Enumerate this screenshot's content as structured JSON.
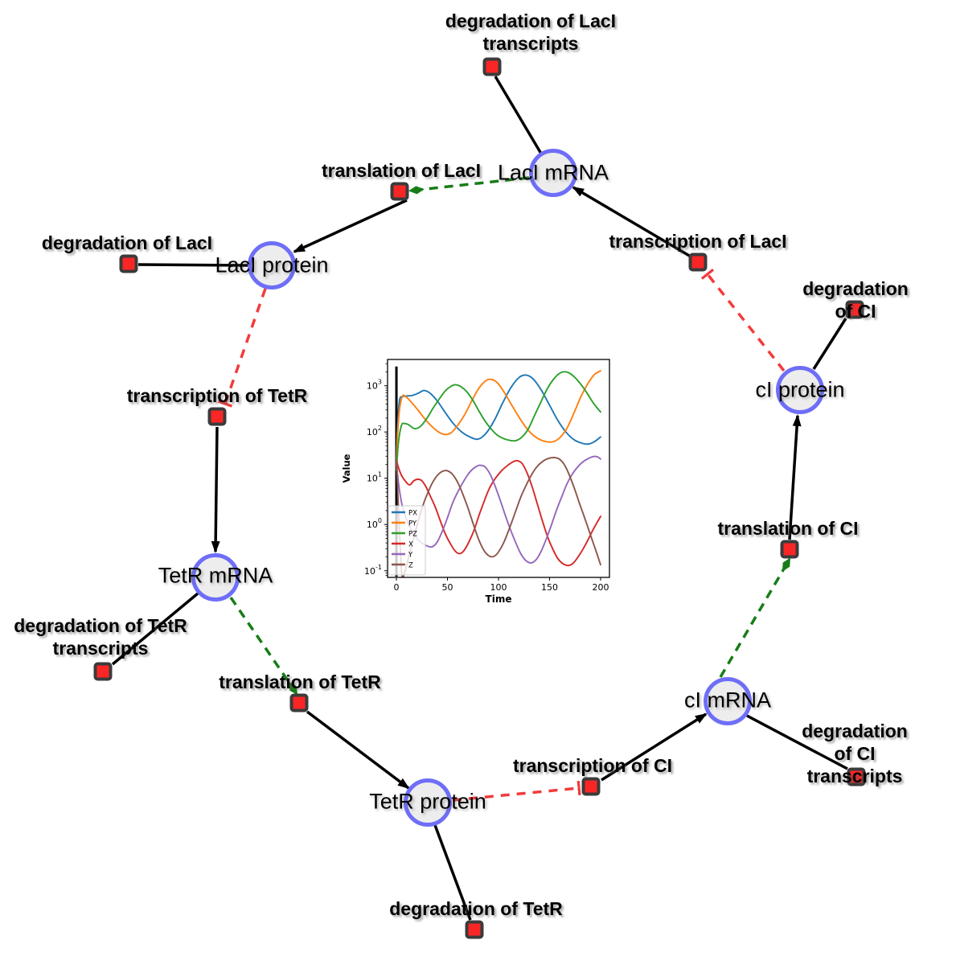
{
  "figure": {
    "background": "#ffffff",
    "description": "Repressilator gene regulatory network with embedded simulation plot"
  },
  "diagram": {
    "colors": {
      "species_fill": "#ededed",
      "species_border": "#6e6ef8",
      "reaction_fill": "#fa2626",
      "reaction_border": "#3b3b3b",
      "edge_solid": "#000000",
      "edge_modifier": "#177d17",
      "edge_inhibition": "#f23b3b",
      "label_color": "#000000"
    },
    "species": [
      {
        "id": "laci-mrna",
        "label": "LacI mRNA"
      },
      {
        "id": "laci-protein",
        "label": "LacI protein"
      },
      {
        "id": "tetr-mrna",
        "label": "TetR mRNA"
      },
      {
        "id": "tetr-protein",
        "label": "TetR protein"
      },
      {
        "id": "ci-mrna",
        "label": "cI mRNA"
      },
      {
        "id": "ci-protein",
        "label": "cI protein"
      }
    ],
    "reactions": [
      {
        "id": "deg-laci-transcripts",
        "label": "degradation of LacI\ntranscripts"
      },
      {
        "id": "translation-laci",
        "label": "translation of LacI"
      },
      {
        "id": "transcription-laci",
        "label": "transcription of LacI"
      },
      {
        "id": "deg-laci",
        "label": "degradation of LacI"
      },
      {
        "id": "transcription-tetr",
        "label": "transcription of TetR"
      },
      {
        "id": "deg-ci",
        "label": "degradation of CI"
      },
      {
        "id": "translation-ci",
        "label": "translation of CI"
      },
      {
        "id": "deg-tetr-transcripts",
        "label": "degradation of TetR\ntranscripts"
      },
      {
        "id": "translation-tetr",
        "label": "translation of TetR"
      },
      {
        "id": "transcription-ci",
        "label": "transcription of CI"
      },
      {
        "id": "deg-ci-transcripts",
        "label": "degradation of CI\ntranscripts"
      },
      {
        "id": "deg-tetr",
        "label": "degradation of TetR"
      }
    ],
    "edges": [
      {
        "from": "laci-mrna",
        "to": "deg-laci-transcripts",
        "type": "consumption"
      },
      {
        "from": "laci-protein",
        "to": "deg-laci",
        "type": "consumption"
      },
      {
        "from": "tetr-mrna",
        "to": "deg-tetr-transcripts",
        "type": "consumption"
      },
      {
        "from": "tetr-protein",
        "to": "deg-tetr",
        "type": "consumption"
      },
      {
        "from": "ci-mrna",
        "to": "deg-ci-transcripts",
        "type": "consumption"
      },
      {
        "from": "ci-protein",
        "to": "deg-ci",
        "type": "consumption"
      },
      {
        "from": "translation-laci",
        "to": "laci-protein",
        "type": "production"
      },
      {
        "from": "transcription-laci",
        "to": "laci-mrna",
        "type": "production"
      },
      {
        "from": "transcription-tetr",
        "to": "tetr-mrna",
        "type": "production"
      },
      {
        "from": "translation-tetr",
        "to": "tetr-protein",
        "type": "production"
      },
      {
        "from": "transcription-ci",
        "to": "ci-mrna",
        "type": "production"
      },
      {
        "from": "translation-ci",
        "to": "ci-protein",
        "type": "production"
      },
      {
        "from": "laci-mrna",
        "to": "translation-laci",
        "type": "modifier"
      },
      {
        "from": "tetr-mrna",
        "to": "translation-tetr",
        "type": "modifier"
      },
      {
        "from": "ci-mrna",
        "to": "translation-ci",
        "type": "modifier"
      },
      {
        "from": "laci-protein",
        "to": "transcription-tetr",
        "type": "inhibition"
      },
      {
        "from": "tetr-protein",
        "to": "transcription-ci",
        "type": "inhibition"
      },
      {
        "from": "ci-protein",
        "to": "transcription-laci",
        "type": "inhibition"
      }
    ]
  },
  "chart_data": {
    "type": "line",
    "title": "",
    "xlabel": "Time",
    "ylabel": "Value",
    "y_scale": "log",
    "grid": false,
    "legend_position": "lower left",
    "x_ticks": [
      0,
      50,
      100,
      150,
      200
    ],
    "y_tick_exponents": [
      -1,
      0,
      1,
      2,
      3
    ],
    "xlim": [
      -8.7,
      208.7
    ],
    "ylim_log10": [
      -1.143,
      3.568
    ],
    "annotations": [
      {
        "type": "vline",
        "x": 0,
        "color": "#000000",
        "y_from": 0.075,
        "y_to": 2600
      }
    ],
    "series": [
      {
        "name": "PX",
        "color": "#1f77b4",
        "points": [
          [
            0,
            20
          ],
          [
            1,
            120
          ],
          [
            3,
            480
          ],
          [
            6,
            580
          ],
          [
            10,
            600
          ],
          [
            16,
            620
          ],
          [
            22,
            700
          ],
          [
            27,
            790
          ],
          [
            33,
            690
          ],
          [
            40,
            470
          ],
          [
            48,
            260
          ],
          [
            56,
            150
          ],
          [
            64,
            100
          ],
          [
            72,
            78
          ],
          [
            80,
            70
          ],
          [
            88,
            95
          ],
          [
            96,
            180
          ],
          [
            104,
            420
          ],
          [
            112,
            900
          ],
          [
            120,
            1500
          ],
          [
            127,
            1700
          ],
          [
            134,
            1400
          ],
          [
            142,
            800
          ],
          [
            150,
            380
          ],
          [
            158,
            180
          ],
          [
            166,
            100
          ],
          [
            174,
            68
          ],
          [
            182,
            57
          ],
          [
            188,
            55
          ],
          [
            194,
            62
          ],
          [
            200,
            78
          ]
        ]
      },
      {
        "name": "PY",
        "color": "#ff7f0e",
        "points": [
          [
            0,
            18
          ],
          [
            1,
            80
          ],
          [
            3,
            300
          ],
          [
            6,
            600
          ],
          [
            10,
            560
          ],
          [
            15,
            430
          ],
          [
            21,
            300
          ],
          [
            28,
            190
          ],
          [
            35,
            130
          ],
          [
            42,
            98
          ],
          [
            48,
            88
          ],
          [
            54,
            98
          ],
          [
            60,
            140
          ],
          [
            67,
            240
          ],
          [
            74,
            480
          ],
          [
            81,
            900
          ],
          [
            88,
            1300
          ],
          [
            93,
            1370
          ],
          [
            99,
            1150
          ],
          [
            106,
            700
          ],
          [
            113,
            380
          ],
          [
            120,
            210
          ],
          [
            127,
            125
          ],
          [
            134,
            85
          ],
          [
            141,
            68
          ],
          [
            148,
            61
          ],
          [
            154,
            62
          ],
          [
            160,
            75
          ],
          [
            167,
            120
          ],
          [
            174,
            260
          ],
          [
            181,
            600
          ],
          [
            188,
            1150
          ],
          [
            194,
            1750
          ],
          [
            200,
            2100
          ]
        ]
      },
      {
        "name": "PZ",
        "color": "#2ca02c",
        "points": [
          [
            0,
            15
          ],
          [
            2,
            60
          ],
          [
            5,
            140
          ],
          [
            8,
            152
          ],
          [
            12,
            143
          ],
          [
            18,
            118
          ],
          [
            24,
            135
          ],
          [
            30,
            200
          ],
          [
            36,
            330
          ],
          [
            42,
            520
          ],
          [
            48,
            780
          ],
          [
            54,
            990
          ],
          [
            58,
            1050
          ],
          [
            63,
            960
          ],
          [
            69,
            740
          ],
          [
            75,
            480
          ],
          [
            81,
            280
          ],
          [
            87,
            170
          ],
          [
            93,
            115
          ],
          [
            99,
            85
          ],
          [
            105,
            72
          ],
          [
            111,
            66
          ],
          [
            117,
            65
          ],
          [
            123,
            78
          ],
          [
            129,
            115
          ],
          [
            135,
            220
          ],
          [
            141,
            420
          ],
          [
            147,
            800
          ],
          [
            153,
            1300
          ],
          [
            159,
            1800
          ],
          [
            164,
            2000
          ],
          [
            169,
            1900
          ],
          [
            175,
            1500
          ],
          [
            181,
            1050
          ],
          [
            187,
            680
          ],
          [
            193,
            420
          ],
          [
            200,
            270
          ]
        ]
      },
      {
        "name": "X",
        "color": "#d62728",
        "points": [
          [
            0,
            25
          ],
          [
            2,
            17
          ],
          [
            5,
            11.5
          ],
          [
            9,
            8.5
          ],
          [
            13,
            7.2
          ],
          [
            17,
            8.8
          ],
          [
            21,
            9.5
          ],
          [
            25,
            8.8
          ],
          [
            29,
            6.5
          ],
          [
            33,
            4.2
          ],
          [
            38,
            2.4
          ],
          [
            43,
            1.2
          ],
          [
            48,
            0.62
          ],
          [
            53,
            0.38
          ],
          [
            58,
            0.26
          ],
          [
            62,
            0.235
          ],
          [
            66,
            0.27
          ],
          [
            71,
            0.42
          ],
          [
            76,
            0.75
          ],
          [
            81,
            1.6
          ],
          [
            86,
            3.2
          ],
          [
            91,
            6
          ],
          [
            97,
            10
          ],
          [
            103,
            14.5
          ],
          [
            109,
            19
          ],
          [
            114,
            22.5
          ],
          [
            118,
            24
          ],
          [
            123,
            21
          ],
          [
            128,
            13
          ],
          [
            133,
            6.5
          ],
          [
            138,
            2.8
          ],
          [
            143,
            1.2
          ],
          [
            148,
            0.55
          ],
          [
            153,
            0.3
          ],
          [
            158,
            0.185
          ],
          [
            163,
            0.143
          ],
          [
            168,
            0.13
          ],
          [
            173,
            0.145
          ],
          [
            178,
            0.2
          ],
          [
            183,
            0.3
          ],
          [
            188,
            0.48
          ],
          [
            193,
            0.8
          ],
          [
            200,
            1.5
          ]
        ]
      },
      {
        "name": "Y",
        "color": "#9467bd",
        "points": [
          [
            0,
            22
          ],
          [
            2,
            8
          ],
          [
            5,
            3
          ],
          [
            8,
            1.7
          ],
          [
            12,
            1.0
          ],
          [
            16,
            0.68
          ],
          [
            20,
            0.5
          ],
          [
            25,
            0.4
          ],
          [
            30,
            0.345
          ],
          [
            35,
            0.33
          ],
          [
            40,
            0.42
          ],
          [
            45,
            0.72
          ],
          [
            50,
            1.4
          ],
          [
            55,
            2.9
          ],
          [
            60,
            5
          ],
          [
            65,
            8
          ],
          [
            70,
            12
          ],
          [
            75,
            16
          ],
          [
            80,
            18.8
          ],
          [
            83,
            19
          ],
          [
            87,
            17.5
          ],
          [
            92,
            12
          ],
          [
            97,
            6.5
          ],
          [
            102,
            3.2
          ],
          [
            107,
            1.5
          ],
          [
            112,
            0.75
          ],
          [
            117,
            0.4
          ],
          [
            122,
            0.23
          ],
          [
            127,
            0.165
          ],
          [
            132,
            0.148
          ],
          [
            137,
            0.175
          ],
          [
            142,
            0.27
          ],
          [
            147,
            0.5
          ],
          [
            152,
            1.0
          ],
          [
            157,
            2.1
          ],
          [
            162,
            4
          ],
          [
            167,
            7.5
          ],
          [
            172,
            12
          ],
          [
            177,
            17
          ],
          [
            182,
            22
          ],
          [
            187,
            26
          ],
          [
            193,
            29.5
          ],
          [
            197,
            29
          ],
          [
            200,
            26
          ]
        ]
      },
      {
        "name": "Z",
        "color": "#8c564b",
        "points": [
          [
            0,
            25
          ],
          [
            1,
            8
          ],
          [
            2,
            2.2
          ],
          [
            3,
            0.7
          ],
          [
            4,
            0.25
          ],
          [
            5,
            0.1
          ],
          [
            6,
            0.07
          ],
          [
            8,
            0.09
          ],
          [
            11,
            0.16
          ],
          [
            15,
            0.35
          ],
          [
            19,
            0.75
          ],
          [
            23,
            1.6
          ],
          [
            27,
            3
          ],
          [
            31,
            5
          ],
          [
            35,
            7.8
          ],
          [
            39,
            10.8
          ],
          [
            43,
            13.3
          ],
          [
            47,
            14.6
          ],
          [
            50,
            14.5
          ],
          [
            54,
            12.8
          ],
          [
            58,
            9.8
          ],
          [
            62,
            6.6
          ],
          [
            66,
            4
          ],
          [
            70,
            2.3
          ],
          [
            74,
            1.25
          ],
          [
            78,
            0.68
          ],
          [
            82,
            0.4
          ],
          [
            86,
            0.27
          ],
          [
            90,
            0.215
          ],
          [
            94,
            0.2
          ],
          [
            98,
            0.225
          ],
          [
            102,
            0.3
          ],
          [
            106,
            0.45
          ],
          [
            110,
            0.75
          ],
          [
            114,
            1.3
          ],
          [
            118,
            2.3
          ],
          [
            122,
            4
          ],
          [
            127,
            7
          ],
          [
            132,
            11.5
          ],
          [
            137,
            17
          ],
          [
            142,
            22
          ],
          [
            147,
            25.8
          ],
          [
            152,
            27.8
          ],
          [
            155,
            28
          ],
          [
            159,
            26.5
          ],
          [
            163,
            22
          ],
          [
            167,
            15.5
          ],
          [
            171,
            9.5
          ],
          [
            175,
            5.5
          ],
          [
            179,
            3
          ],
          [
            183,
            1.7
          ],
          [
            187,
            0.95
          ],
          [
            191,
            0.52
          ],
          [
            195,
            0.29
          ],
          [
            200,
            0.135
          ]
        ]
      }
    ]
  }
}
